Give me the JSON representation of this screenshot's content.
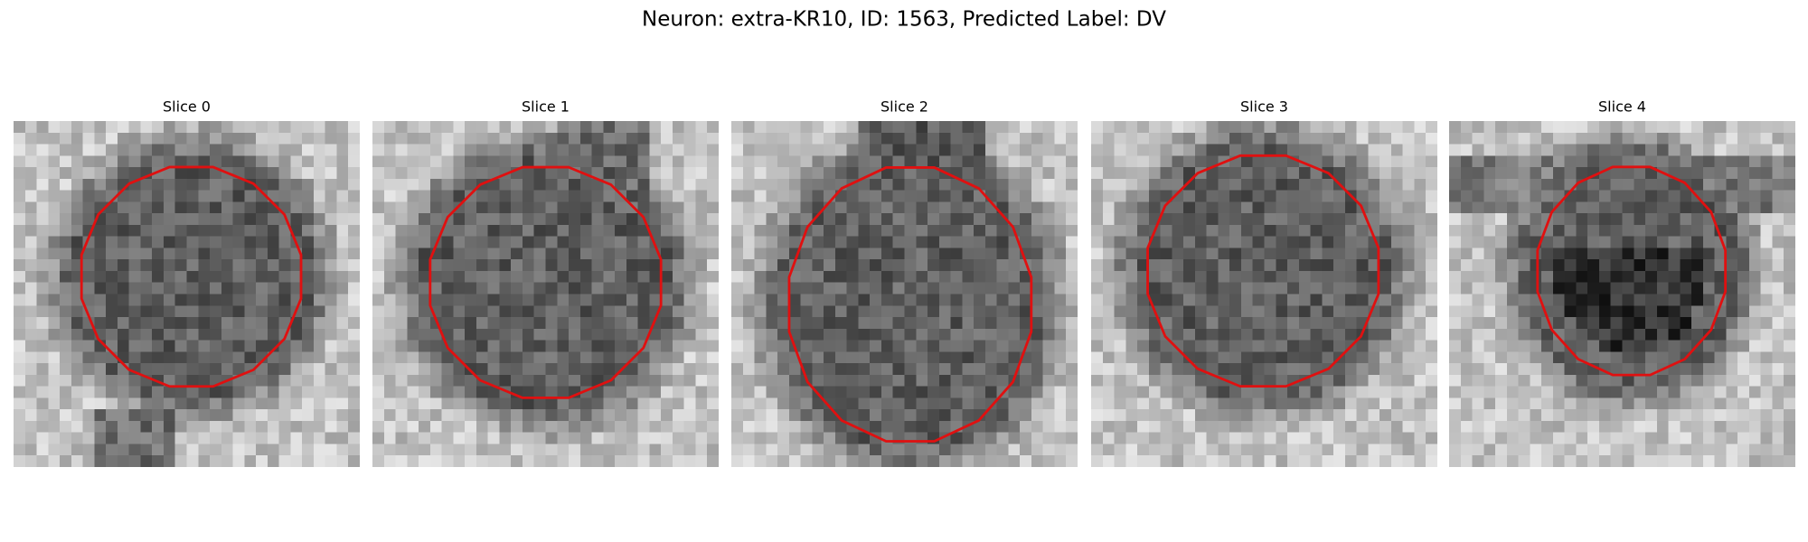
{
  "title": "Neuron: extra-KR10, ID: 1563, Predicted Label: DV",
  "panels": [
    {
      "title": "Slice 0"
    },
    {
      "title": "Slice 1"
    },
    {
      "title": "Slice 2"
    },
    {
      "title": "Slice 3"
    },
    {
      "title": "Slice 4"
    }
  ]
}
